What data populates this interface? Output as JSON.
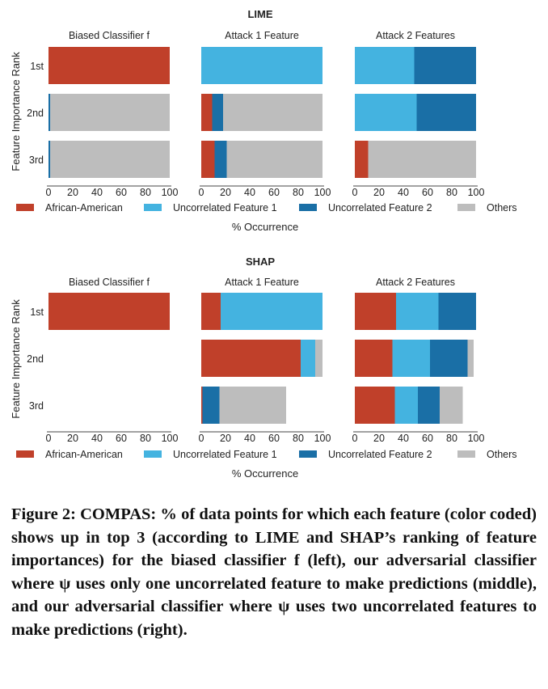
{
  "colors": {
    "African-American": "#c0402a",
    "Uncorrelated Feature 1": "#44b3e0",
    "Uncorrelated Feature 2": "#1a6fa6",
    "Others": "#bdbdbd"
  },
  "legend_labels": [
    "African-American",
    "Uncorrelated Feature 1",
    "Uncorrelated Feature 2",
    "Others"
  ],
  "chart_data": [
    {
      "type": "bar",
      "orientation": "horizontal-stacked",
      "title": "LIME",
      "ylabel": "Feature Importance Rank",
      "xlabel": "% Occurrence",
      "ranks": [
        "1st",
        "2nd",
        "3rd"
      ],
      "xlim": [
        0,
        100
      ],
      "xticks": [
        "0",
        "20",
        "40",
        "60",
        "80",
        "100"
      ],
      "panels": [
        {
          "title": "Biased Classifier f",
          "rows": [
            [
              {
                "label": "African-American",
                "value": 100
              }
            ],
            [
              {
                "label": "Uncorrelated Feature 2",
                "value": 1.5
              },
              {
                "label": "Others",
                "value": 98.5
              }
            ],
            [
              {
                "label": "Uncorrelated Feature 2",
                "value": 1.5
              },
              {
                "label": "Others",
                "value": 98.5
              }
            ]
          ]
        },
        {
          "title": "Attack 1 Feature",
          "rows": [
            [
              {
                "label": "Uncorrelated Feature 1",
                "value": 100
              }
            ],
            [
              {
                "label": "African-American",
                "value": 9
              },
              {
                "label": "Uncorrelated Feature 2",
                "value": 9
              },
              {
                "label": "Others",
                "value": 82
              }
            ],
            [
              {
                "label": "African-American",
                "value": 11
              },
              {
                "label": "Uncorrelated Feature 2",
                "value": 10
              },
              {
                "label": "Others",
                "value": 79
              }
            ]
          ]
        },
        {
          "title": "Attack 2 Features",
          "rows": [
            [
              {
                "label": "Uncorrelated Feature 1",
                "value": 49
              },
              {
                "label": "Uncorrelated Feature 2",
                "value": 51
              }
            ],
            [
              {
                "label": "Uncorrelated Feature 1",
                "value": 51
              },
              {
                "label": "Uncorrelated Feature 2",
                "value": 49
              }
            ],
            [
              {
                "label": "African-American",
                "value": 11
              },
              {
                "label": "Others",
                "value": 89
              }
            ]
          ]
        }
      ]
    },
    {
      "type": "bar",
      "orientation": "horizontal-stacked",
      "title": "SHAP",
      "ylabel": "Feature Importance Rank",
      "xlabel": "% Occurrence",
      "ranks": [
        "1st",
        "2nd",
        "3rd"
      ],
      "xlim": [
        0,
        100
      ],
      "xticks": [
        "0",
        "20",
        "40",
        "60",
        "80",
        "100"
      ],
      "panels": [
        {
          "title": "Biased Classifier f",
          "rows": [
            [
              {
                "label": "African-American",
                "value": 100
              }
            ],
            [],
            []
          ]
        },
        {
          "title": "Attack 1 Feature",
          "rows": [
            [
              {
                "label": "African-American",
                "value": 16
              },
              {
                "label": "Uncorrelated Feature 1",
                "value": 84
              }
            ],
            [
              {
                "label": "African-American",
                "value": 82
              },
              {
                "label": "Uncorrelated Feature 1",
                "value": 12
              },
              {
                "label": "Others",
                "value": 6
              }
            ],
            [
              {
                "label": "African-American",
                "value": 1
              },
              {
                "label": "Uncorrelated Feature 2",
                "value": 14
              },
              {
                "label": "Others",
                "value": 55
              }
            ]
          ]
        },
        {
          "title": "Attack 2 Features",
          "rows": [
            [
              {
                "label": "African-American",
                "value": 34
              },
              {
                "label": "Uncorrelated Feature 1",
                "value": 35
              },
              {
                "label": "Uncorrelated Feature 2",
                "value": 31
              }
            ],
            [
              {
                "label": "African-American",
                "value": 31
              },
              {
                "label": "Uncorrelated Feature 1",
                "value": 31
              },
              {
                "label": "Uncorrelated Feature 2",
                "value": 31
              },
              {
                "label": "Others",
                "value": 5
              }
            ],
            [
              {
                "label": "African-American",
                "value": 33
              },
              {
                "label": "Uncorrelated Feature 1",
                "value": 19
              },
              {
                "label": "Uncorrelated Feature 2",
                "value": 18
              },
              {
                "label": "Others",
                "value": 19
              }
            ]
          ]
        }
      ]
    }
  ],
  "caption": "Figure 2: COMPAS: % of data points for which each feature (color coded) shows up in top 3 (according to LIME and SHAP’s ranking of feature importances) for the biased classifier f (left), our adversarial classifier where ψ uses only one uncorrelated feature to make predictions (middle), and our adversarial classifier where ψ uses two uncorrelated features to make predictions (right)."
}
